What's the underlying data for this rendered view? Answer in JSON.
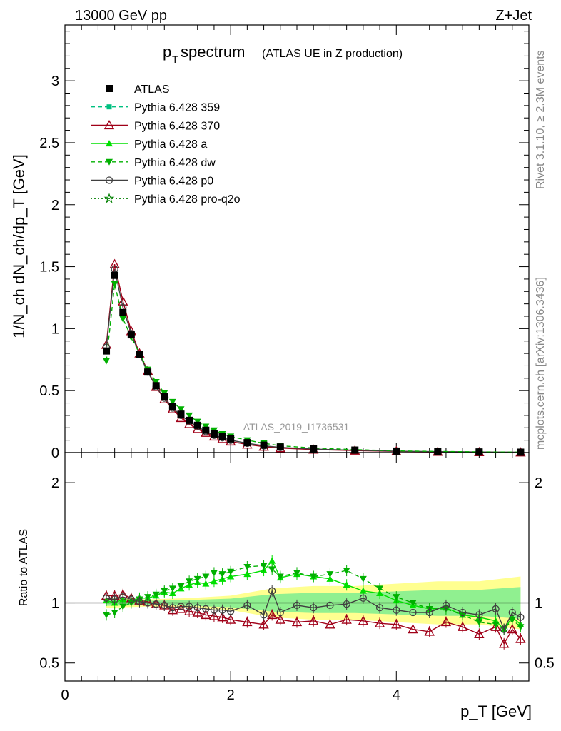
{
  "header": {
    "left": "13000 GeV pp",
    "right": "Z+Jet"
  },
  "side_labels": {
    "rivet": "Rivet 3.1.10, ≥ 2.3M events",
    "mcplots": "mcplots.cern.ch [arXiv:1306.3436]"
  },
  "analysis_id": "ATLAS_2019_I1736531",
  "chart_data": [
    {
      "type": "scatter",
      "title": {
        "main": "p",
        "sub": "T",
        "rest": " spectrum",
        "note": "(ATLAS UE in Z production)"
      },
      "ylabel": "1/N_ch dN_ch/dp_T [GeV]",
      "xlim": [
        0,
        5.6
      ],
      "ylim": [
        0,
        3.45
      ],
      "yticks": [
        0,
        0.5,
        1,
        1.5,
        2,
        2.5,
        3
      ],
      "ytick_labels": [
        "0",
        "0.5",
        "1",
        "1.5",
        "2",
        "2.5",
        "3"
      ],
      "legend": [
        {
          "label": "ATLAS",
          "color": "#000000",
          "marker": "square",
          "line": "none"
        },
        {
          "label": "Pythia 6.428 359",
          "color": "#00c080",
          "marker": "small-square",
          "line": "dashed"
        },
        {
          "label": "Pythia 6.428 370",
          "color": "#a00018",
          "marker": "open-triangle",
          "line": "solid"
        },
        {
          "label": "Pythia 6.428 a",
          "color": "#00e000",
          "marker": "triangle",
          "line": "solid"
        },
        {
          "label": "Pythia 6.428 dw",
          "color": "#00b000",
          "marker": "triangle-down",
          "line": "dashed"
        },
        {
          "label": "Pythia 6.428 p0",
          "color": "#404040",
          "marker": "open-circle",
          "line": "solid"
        },
        {
          "label": "Pythia 6.428 pro-q2o",
          "color": "#008000",
          "marker": "star",
          "line": "dotted"
        }
      ],
      "x": [
        0.5,
        0.6,
        0.7,
        0.8,
        0.9,
        1.0,
        1.1,
        1.2,
        1.3,
        1.4,
        1.5,
        1.6,
        1.7,
        1.8,
        1.9,
        2.0,
        2.2,
        2.4,
        2.6,
        3.0,
        3.5,
        4.0,
        4.5,
        5.0,
        5.5
      ],
      "data_values": [
        0.82,
        1.43,
        1.13,
        0.95,
        0.79,
        0.65,
        0.54,
        0.45,
        0.37,
        0.31,
        0.26,
        0.22,
        0.18,
        0.15,
        0.13,
        0.11,
        0.08,
        0.06,
        0.045,
        0.03,
        0.02,
        0.012,
        0.008,
        0.005,
        0.003
      ],
      "series": [
        {
          "name": "Pythia 6.428 370",
          "values": [
            0.87,
            1.52,
            1.22,
            0.98,
            0.8,
            0.66,
            0.53,
            0.43,
            0.35,
            0.28,
            0.23,
            0.19,
            0.16,
            0.13,
            0.11,
            0.09,
            0.065,
            0.048,
            0.036,
            0.024,
            0.016,
            0.01,
            0.007,
            0.004,
            0.002
          ]
        },
        {
          "name": "Pythia 6.428 p0",
          "values": [
            0.85,
            1.48,
            1.17,
            0.96,
            0.79,
            0.65,
            0.53,
            0.44,
            0.36,
            0.3,
            0.25,
            0.21,
            0.17,
            0.14,
            0.12,
            0.1,
            0.075,
            0.055,
            0.042,
            0.028,
            0.019,
            0.011,
            0.0075,
            0.0045,
            0.0028
          ]
        },
        {
          "name": "Pythia 6.428 dw",
          "values": [
            0.74,
            1.36,
            1.08,
            0.93,
            0.8,
            0.67,
            0.57,
            0.48,
            0.41,
            0.35,
            0.3,
            0.25,
            0.21,
            0.18,
            0.15,
            0.13,
            0.1,
            0.075,
            0.055,
            0.037,
            0.024,
            0.014,
            0.009,
            0.0055,
            0.0032
          ]
        }
      ]
    },
    {
      "type": "scatter",
      "ylabel": "Ratio to ATLAS",
      "xlabel": "p_T [GeV]",
      "xlim": [
        0,
        5.6
      ],
      "ylim": [
        0.35,
        2.25
      ],
      "xticks": [
        0,
        2,
        4
      ],
      "xtick_labels": [
        "0",
        "2",
        "4"
      ],
      "yticks": [
        0.5,
        1,
        2
      ],
      "ytick_labels": [
        "0.5",
        "1",
        "2"
      ],
      "x": [
        0.5,
        0.6,
        0.7,
        0.8,
        0.9,
        1.0,
        1.1,
        1.2,
        1.3,
        1.4,
        1.5,
        1.6,
        1.7,
        1.8,
        1.9,
        2.0,
        2.2,
        2.4,
        2.5,
        2.6,
        2.8,
        3.0,
        3.2,
        3.4,
        3.6,
        3.8,
        4.0,
        4.2,
        4.4,
        4.6,
        4.8,
        5.0,
        5.2,
        5.3,
        5.4,
        5.5
      ],
      "series": [
        {
          "name": "Pythia 6.428 370",
          "values": [
            1.06,
            1.06,
            1.07,
            1.04,
            1.02,
            1.01,
            0.99,
            0.98,
            0.94,
            0.95,
            0.93,
            0.92,
            0.9,
            0.89,
            0.88,
            0.86,
            0.84,
            0.82,
            0.9,
            0.86,
            0.84,
            0.85,
            0.82,
            0.86,
            0.85,
            0.83,
            0.82,
            0.78,
            0.76,
            0.84,
            0.8,
            0.74,
            0.8,
            0.66,
            0.78,
            0.7
          ]
        },
        {
          "name": "Pythia 6.428 a",
          "values": [
            1.02,
            1.0,
            1.03,
            1.02,
            1.04,
            1.04,
            1.06,
            1.09,
            1.08,
            1.12,
            1.15,
            1.17,
            1.16,
            1.18,
            1.2,
            1.22,
            1.24,
            1.27,
            1.35,
            1.21,
            1.24,
            1.22,
            1.2,
            1.15,
            1.1,
            1.08,
            1.02,
            0.98,
            0.95,
            0.96,
            0.9,
            0.88,
            0.85,
            0.78,
            0.88,
            0.82
          ]
        },
        {
          "name": "Pythia 6.428 dw",
          "values": [
            0.9,
            0.92,
            0.97,
            1.0,
            1.03,
            1.05,
            1.07,
            1.1,
            1.12,
            1.14,
            1.18,
            1.2,
            1.22,
            1.25,
            1.24,
            1.26,
            1.3,
            1.31,
            1.28,
            1.22,
            1.25,
            1.22,
            1.24,
            1.27,
            1.2,
            1.12,
            1.05,
            1.0,
            0.95,
            0.95,
            0.9,
            0.84,
            0.82,
            0.78,
            0.86,
            0.8
          ]
        },
        {
          "name": "Pythia 6.428 p0",
          "values": [
            1.04,
            1.03,
            1.05,
            1.03,
            1.01,
            1.0,
            0.99,
            0.98,
            0.96,
            0.97,
            0.97,
            0.96,
            0.95,
            0.94,
            0.94,
            0.93,
            0.98,
            0.9,
            1.1,
            0.92,
            0.98,
            0.96,
            0.98,
            0.99,
            1.04,
            0.96,
            0.94,
            0.92,
            0.92,
            0.98,
            0.92,
            0.9,
            0.95,
            0.78,
            0.92,
            0.88
          ]
        }
      ],
      "uncertainty_band": {
        "x": [
          0.5,
          1.0,
          1.5,
          2.0,
          2.5,
          3.0,
          3.5,
          4.0,
          4.5,
          5.0,
          5.5
        ],
        "lower": [
          0.96,
          0.97,
          0.96,
          0.94,
          0.88,
          0.86,
          0.86,
          0.84,
          0.82,
          0.82,
          0.78
        ],
        "upper": [
          1.04,
          1.03,
          1.04,
          1.06,
          1.12,
          1.14,
          1.14,
          1.16,
          1.18,
          1.18,
          1.22
        ]
      }
    }
  ]
}
